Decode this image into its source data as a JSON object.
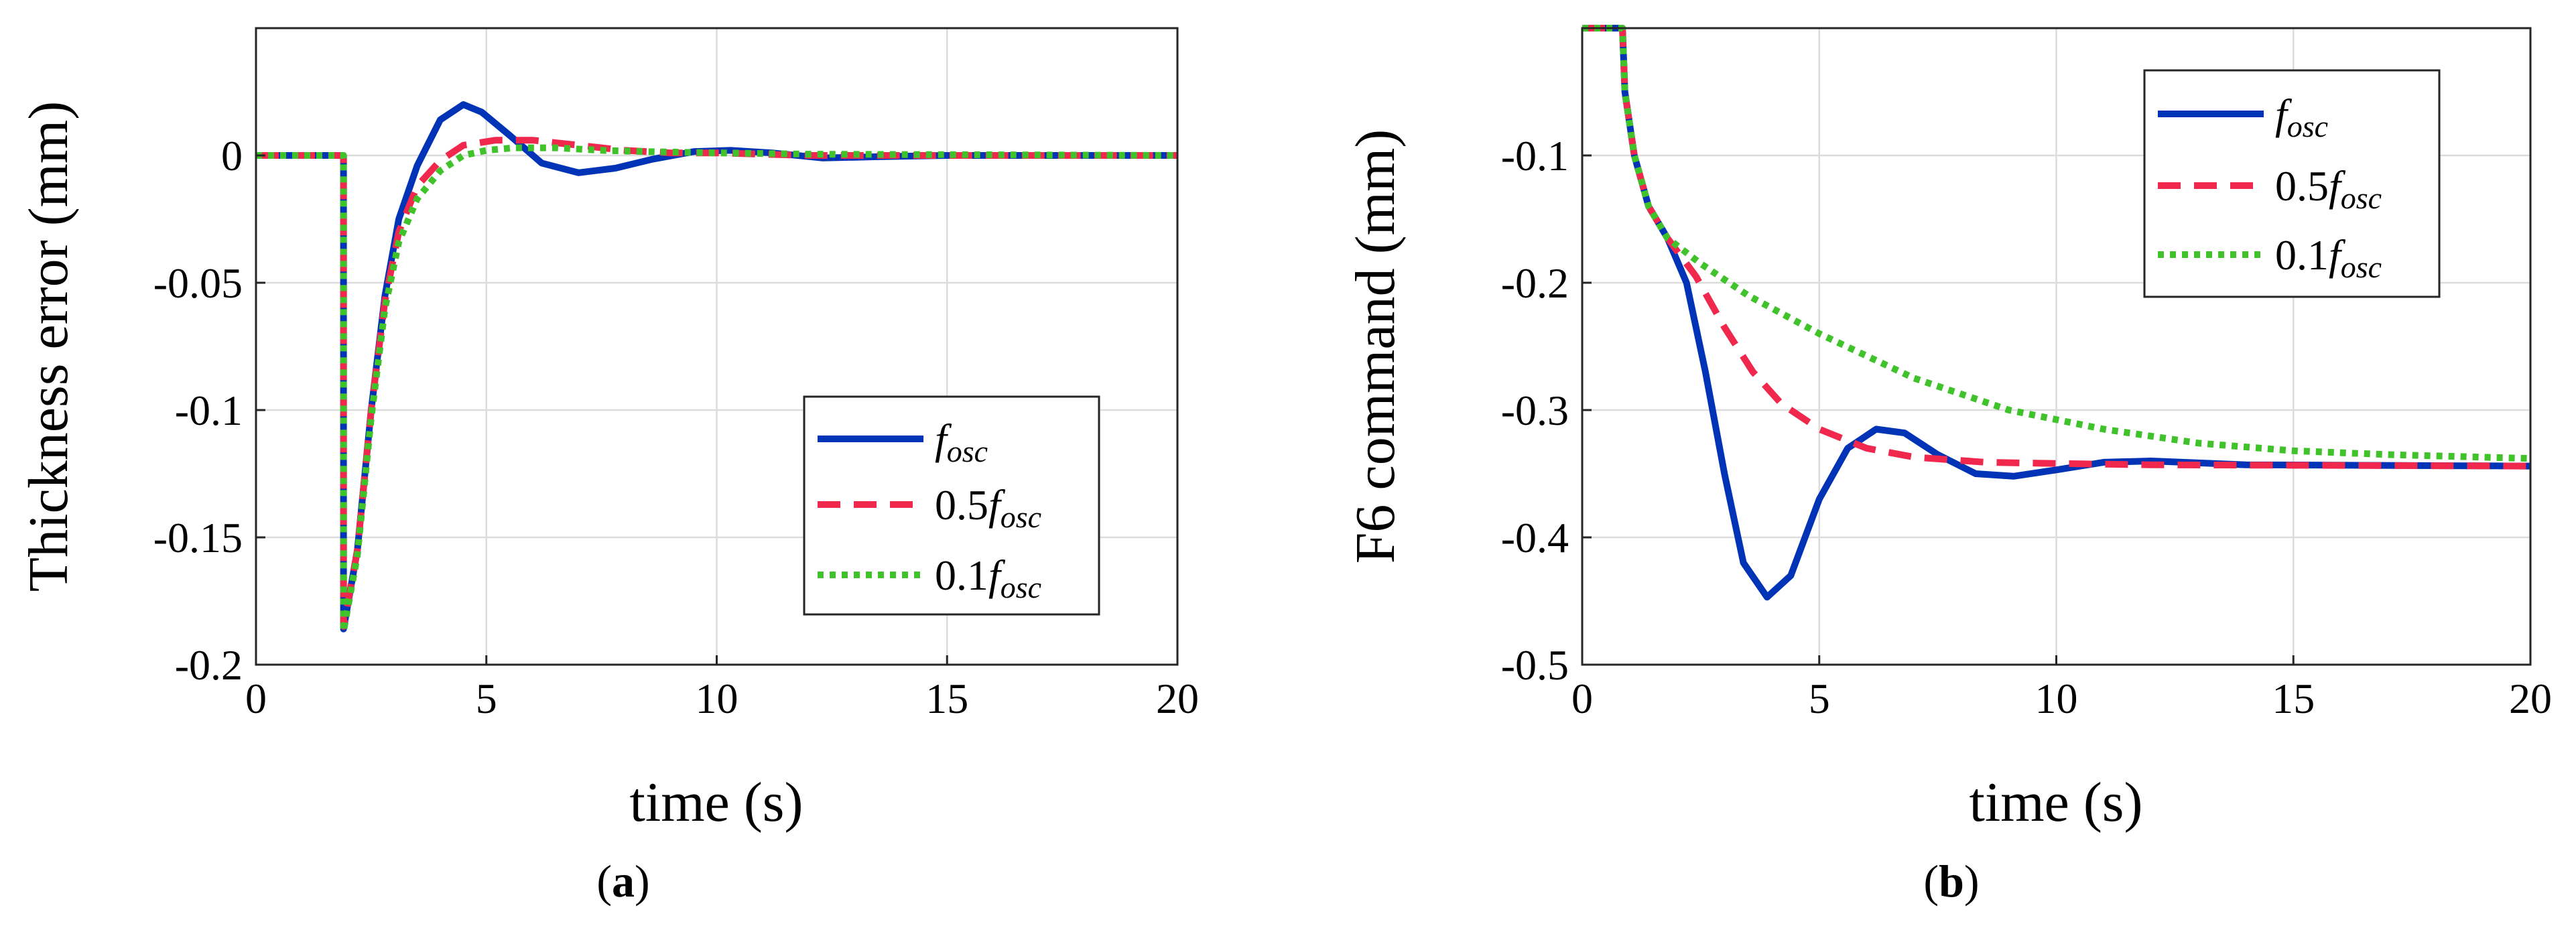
{
  "figure": {
    "panel_labels": [
      {
        "open": "(",
        "letter": "a",
        "close": ")"
      },
      {
        "open": "(",
        "letter": "b",
        "close": ")"
      }
    ]
  },
  "colors": {
    "f_osc": "#0033b5",
    "half_f_osc": "#f0284e",
    "tenth_f_osc": "#3fc22a"
  },
  "chart_data": [
    {
      "type": "line",
      "title": "",
      "xlabel": "time (s)",
      "ylabel": "Thickness error (mm)",
      "xlim": [
        0,
        20
      ],
      "ylim": [
        -0.2,
        0.05
      ],
      "xticks": [
        0,
        5,
        10,
        15,
        20
      ],
      "yticks": [
        0,
        -0.05,
        -0.1,
        -0.15,
        -0.2
      ],
      "xtick_labels": [
        "0",
        "5",
        "10",
        "15",
        "20"
      ],
      "ytick_labels": [
        "0",
        "-0.05",
        "-0.1",
        "-0.15",
        "-0.2"
      ],
      "grid": true,
      "legend_position": "lower-right",
      "series": [
        {
          "name": "f_osc",
          "legend": {
            "prefix": "",
            "symbol": "f",
            "sub": "osc"
          },
          "style": "solid",
          "points": [
            [
              0,
              0
            ],
            [
              1.9,
              0
            ],
            [
              1.9,
              -0.186
            ],
            [
              2.2,
              -0.155
            ],
            [
              2.5,
              -0.1
            ],
            [
              2.8,
              -0.055
            ],
            [
              3.1,
              -0.025
            ],
            [
              3.5,
              -0.004
            ],
            [
              4.0,
              0.014
            ],
            [
              4.5,
              0.02
            ],
            [
              4.9,
              0.017
            ],
            [
              5.5,
              0.008
            ],
            [
              6.2,
              -0.003
            ],
            [
              7.0,
              -0.0068
            ],
            [
              7.8,
              -0.005
            ],
            [
              8.6,
              -0.0015
            ],
            [
              9.5,
              0.0015
            ],
            [
              10.3,
              0.002
            ],
            [
              11.2,
              0.001
            ],
            [
              12.3,
              -0.001
            ],
            [
              13.5,
              -0.0005
            ],
            [
              15,
              0
            ],
            [
              20,
              0
            ]
          ]
        },
        {
          "name": "0.5f_osc",
          "legend": {
            "prefix": "0.5",
            "symbol": "f",
            "sub": "osc"
          },
          "style": "dashed",
          "points": [
            [
              0,
              0
            ],
            [
              1.9,
              0
            ],
            [
              1.9,
              -0.185
            ],
            [
              2.2,
              -0.155
            ],
            [
              2.5,
              -0.1
            ],
            [
              2.8,
              -0.057
            ],
            [
              3.1,
              -0.03
            ],
            [
              3.5,
              -0.012
            ],
            [
              4.0,
              -0.002
            ],
            [
              4.5,
              0.004
            ],
            [
              5.2,
              0.006
            ],
            [
              6.0,
              0.006
            ],
            [
              7.0,
              0.004
            ],
            [
              8.0,
              0.002
            ],
            [
              9.0,
              0.001
            ],
            [
              10,
              0.001
            ],
            [
              12,
              0
            ],
            [
              20,
              0
            ]
          ]
        },
        {
          "name": "0.1f_osc",
          "legend": {
            "prefix": "0.1",
            "symbol": "f",
            "sub": "osc"
          },
          "style": "dotted",
          "points": [
            [
              0,
              0
            ],
            [
              1.9,
              0
            ],
            [
              1.9,
              -0.187
            ],
            [
              2.2,
              -0.157
            ],
            [
              2.5,
              -0.103
            ],
            [
              2.8,
              -0.06
            ],
            [
              3.1,
              -0.034
            ],
            [
              3.5,
              -0.017
            ],
            [
              4.0,
              -0.006
            ],
            [
              4.5,
              0.0
            ],
            [
              5.0,
              0.002
            ],
            [
              5.6,
              0.003
            ],
            [
              6.5,
              0.003
            ],
            [
              7.5,
              0.002
            ],
            [
              8.5,
              0.0015
            ],
            [
              10,
              0.001
            ],
            [
              12,
              0.0005
            ],
            [
              20,
              0
            ]
          ]
        }
      ]
    },
    {
      "type": "line",
      "title": "",
      "xlabel": "time (s)",
      "ylabel": "F6 command (mm)",
      "xlim": [
        0,
        20
      ],
      "ylim": [
        -0.5,
        0.0
      ],
      "xticks": [
        0,
        5,
        10,
        15,
        20
      ],
      "yticks": [
        -0.1,
        -0.2,
        -0.3,
        -0.4,
        -0.5
      ],
      "xtick_labels": [
        "0",
        "5",
        "10",
        "15",
        "20"
      ],
      "ytick_labels": [
        "-0.1",
        "-0.2",
        "-0.3",
        "-0.4",
        "-0.5"
      ],
      "grid": true,
      "legend_position": "top-right",
      "series": [
        {
          "name": "f_osc",
          "legend": {
            "prefix": "",
            "symbol": "f",
            "sub": "osc"
          },
          "style": "solid",
          "points": [
            [
              0,
              0
            ],
            [
              0.85,
              0
            ],
            [
              0.9,
              -0.05
            ],
            [
              1.1,
              -0.1
            ],
            [
              1.4,
              -0.14
            ],
            [
              1.8,
              -0.165
            ],
            [
              2.2,
              -0.2
            ],
            [
              2.6,
              -0.27
            ],
            [
              3.0,
              -0.35
            ],
            [
              3.4,
              -0.42
            ],
            [
              3.9,
              -0.447
            ],
            [
              4.4,
              -0.43
            ],
            [
              5.0,
              -0.37
            ],
            [
              5.6,
              -0.33
            ],
            [
              6.2,
              -0.315
            ],
            [
              6.8,
              -0.318
            ],
            [
              7.5,
              -0.335
            ],
            [
              8.3,
              -0.35
            ],
            [
              9.1,
              -0.352
            ],
            [
              10,
              -0.347
            ],
            [
              11,
              -0.341
            ],
            [
              12,
              -0.34
            ],
            [
              14,
              -0.343
            ],
            [
              20,
              -0.344
            ]
          ]
        },
        {
          "name": "0.5f_osc",
          "legend": {
            "prefix": "0.5",
            "symbol": "f",
            "sub": "osc"
          },
          "style": "dashed",
          "points": [
            [
              0,
              0
            ],
            [
              0.85,
              0
            ],
            [
              0.9,
              -0.05
            ],
            [
              1.1,
              -0.1
            ],
            [
              1.4,
              -0.14
            ],
            [
              1.8,
              -0.165
            ],
            [
              2.4,
              -0.195
            ],
            [
              3.0,
              -0.235
            ],
            [
              3.6,
              -0.27
            ],
            [
              4.2,
              -0.295
            ],
            [
              5.0,
              -0.315
            ],
            [
              6.0,
              -0.33
            ],
            [
              7.0,
              -0.337
            ],
            [
              8.5,
              -0.341
            ],
            [
              10,
              -0.342
            ],
            [
              12,
              -0.343
            ],
            [
              20,
              -0.344
            ]
          ]
        },
        {
          "name": "0.1f_osc",
          "legend": {
            "prefix": "0.1",
            "symbol": "f",
            "sub": "osc"
          },
          "style": "dotted",
          "points": [
            [
              0,
              0
            ],
            [
              0.85,
              0
            ],
            [
              0.9,
              -0.05
            ],
            [
              1.1,
              -0.1
            ],
            [
              1.4,
              -0.14
            ],
            [
              1.8,
              -0.165
            ],
            [
              2.5,
              -0.185
            ],
            [
              3.5,
              -0.21
            ],
            [
              5.0,
              -0.24
            ],
            [
              7.0,
              -0.275
            ],
            [
              9.0,
              -0.3
            ],
            [
              11,
              -0.315
            ],
            [
              13,
              -0.326
            ],
            [
              15,
              -0.332
            ],
            [
              17,
              -0.335
            ],
            [
              20,
              -0.338
            ]
          ]
        }
      ]
    }
  ]
}
